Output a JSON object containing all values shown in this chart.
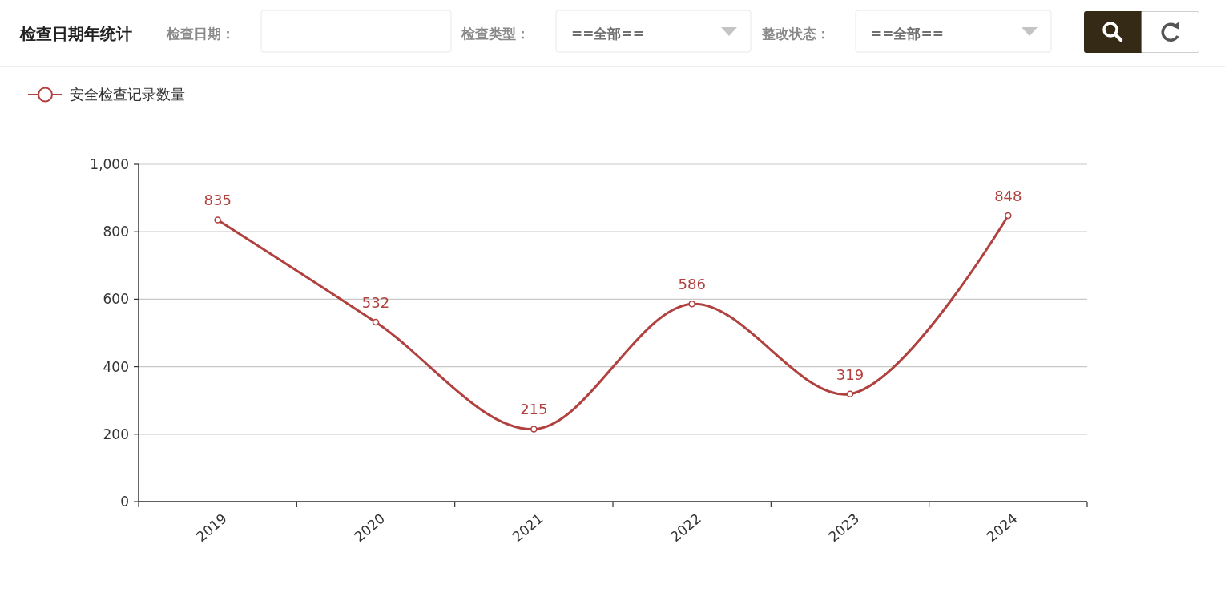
{
  "chart_data": {
    "type": "line",
    "title": "检查日期年统计",
    "annotations": [
      "检查日期：",
      "检查类型：",
      "==全部==",
      "整改状态：",
      "==全部=="
    ],
    "categories": [
      "2019",
      "2020",
      "2021",
      "2022",
      "2023",
      "2024"
    ],
    "series": [
      {
        "name": "安全检查记录数量",
        "color": "#b0413e",
        "values": [
          835,
          532,
          215,
          586,
          319,
          848
        ]
      }
    ],
    "ylim": [
      0,
      1000
    ],
    "yticks": [
      0,
      200,
      400,
      600,
      800,
      {
        "value": 1000,
        "label": "1,000"
      }
    ],
    "grid": "y",
    "legend": "top left",
    "marker": "circle",
    "line_style": "solid",
    "data_labels": true
  }
}
